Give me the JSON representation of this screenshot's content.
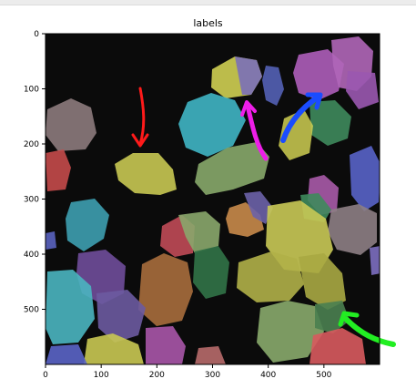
{
  "chart_data": {
    "type": "image",
    "title": "labels",
    "x_ticks": [
      0,
      100,
      200,
      300,
      400,
      500
    ],
    "y_ticks": [
      0,
      100,
      200,
      300,
      400,
      500
    ],
    "xlim": [
      0,
      600
    ],
    "ylim": [
      0,
      600
    ],
    "annotations": [
      {
        "color": "red",
        "label": "red-arrow"
      },
      {
        "color": "magenta",
        "label": "magenta-arrow"
      },
      {
        "color": "blue",
        "label": "blue-arrow"
      },
      {
        "color": "green",
        "label": "green-arrow"
      }
    ]
  }
}
